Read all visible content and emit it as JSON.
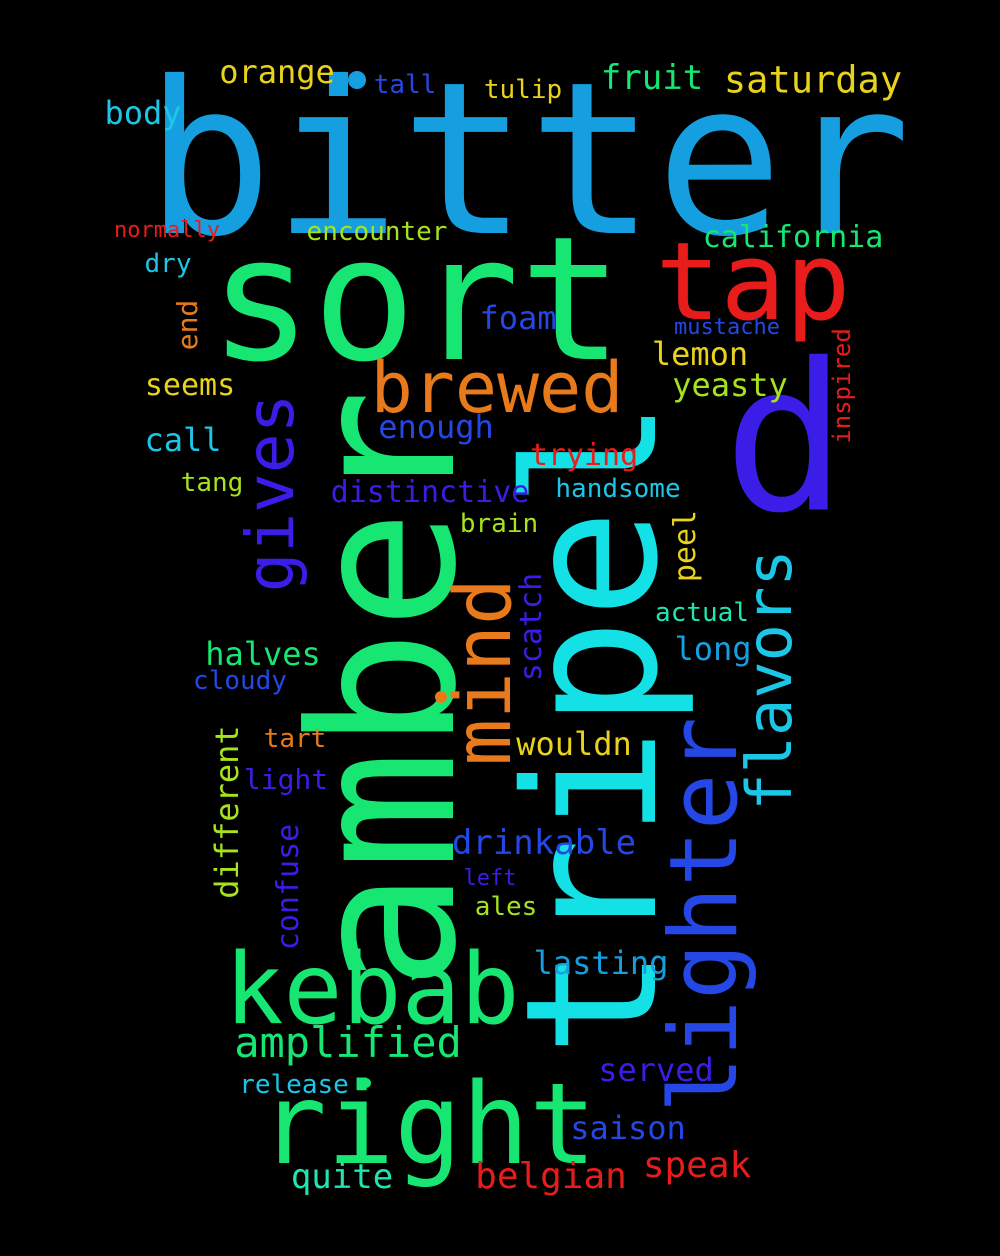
{
  "palette": {
    "blue": "#169fe0",
    "green": "#17e673",
    "cyan": "#13e1e6",
    "red": "#e91c1c",
    "orange": "#e87a1c",
    "indigo": "#3a1ee8",
    "royal": "#2447e6",
    "yellow": "#e9d21c",
    "lime": "#a6e31c",
    "sky": "#1cc6e6",
    "aqua": "#1ee6b0"
  },
  "words": [
    {
      "text": "bitter",
      "color": "blue"
    },
    {
      "text": "sort",
      "color": "green"
    },
    {
      "text": "amber",
      "color": "green"
    },
    {
      "text": "tripel",
      "color": "cyan"
    },
    {
      "text": "d",
      "color": "indigo"
    },
    {
      "text": "tap",
      "color": "red"
    },
    {
      "text": "kebab",
      "color": "green"
    },
    {
      "text": "right",
      "color": "green"
    },
    {
      "text": "lighter",
      "color": "royal"
    },
    {
      "text": "brewed",
      "color": "orange"
    },
    {
      "text": "mind",
      "color": "orange"
    },
    {
      "text": "gives",
      "color": "indigo"
    },
    {
      "text": "flavors",
      "color": "sky"
    },
    {
      "text": "amplified",
      "color": "green"
    },
    {
      "text": "saturday",
      "color": "yellow"
    },
    {
      "text": "orange",
      "color": "yellow"
    },
    {
      "text": "fruit",
      "color": "green"
    },
    {
      "text": "body",
      "color": "sky"
    },
    {
      "text": "tulip",
      "color": "yellow"
    },
    {
      "text": "tall",
      "color": "royal"
    },
    {
      "text": "california",
      "color": "green"
    },
    {
      "text": "encounter",
      "color": "lime"
    },
    {
      "text": "normally",
      "color": "red"
    },
    {
      "text": "dry",
      "color": "sky"
    },
    {
      "text": "foam",
      "color": "royal"
    },
    {
      "text": "mustache",
      "color": "royal"
    },
    {
      "text": "inspired",
      "color": "red"
    },
    {
      "text": "end",
      "color": "orange"
    },
    {
      "text": "lemon",
      "color": "yellow"
    },
    {
      "text": "seems",
      "color": "yellow"
    },
    {
      "text": "yeasty",
      "color": "lime"
    },
    {
      "text": "enough",
      "color": "royal"
    },
    {
      "text": "call",
      "color": "sky"
    },
    {
      "text": "trying",
      "color": "red"
    },
    {
      "text": "tang",
      "color": "lime"
    },
    {
      "text": "distinctive",
      "color": "indigo"
    },
    {
      "text": "handsome",
      "color": "sky"
    },
    {
      "text": "brain",
      "color": "lime"
    },
    {
      "text": "peel",
      "color": "yellow"
    },
    {
      "text": "actual",
      "color": "aqua"
    },
    {
      "text": "scatch",
      "color": "indigo"
    },
    {
      "text": "halves",
      "color": "green"
    },
    {
      "text": "long",
      "color": "blue"
    },
    {
      "text": "cloudy",
      "color": "royal"
    },
    {
      "text": "different",
      "color": "lime"
    },
    {
      "text": "wouldn",
      "color": "yellow"
    },
    {
      "text": "tart",
      "color": "orange"
    },
    {
      "text": "light",
      "color": "indigo"
    },
    {
      "text": "confuse",
      "color": "indigo"
    },
    {
      "text": "drinkable",
      "color": "royal"
    },
    {
      "text": "left",
      "color": "indigo"
    },
    {
      "text": "ales",
      "color": "lime"
    },
    {
      "text": "lasting",
      "color": "blue"
    },
    {
      "text": "served",
      "color": "indigo"
    },
    {
      "text": "release",
      "color": "sky"
    },
    {
      "text": "saison",
      "color": "royal"
    },
    {
      "text": "speak",
      "color": "red"
    },
    {
      "text": "belgian",
      "color": "red"
    },
    {
      "text": "quite",
      "color": "aqua"
    }
  ]
}
